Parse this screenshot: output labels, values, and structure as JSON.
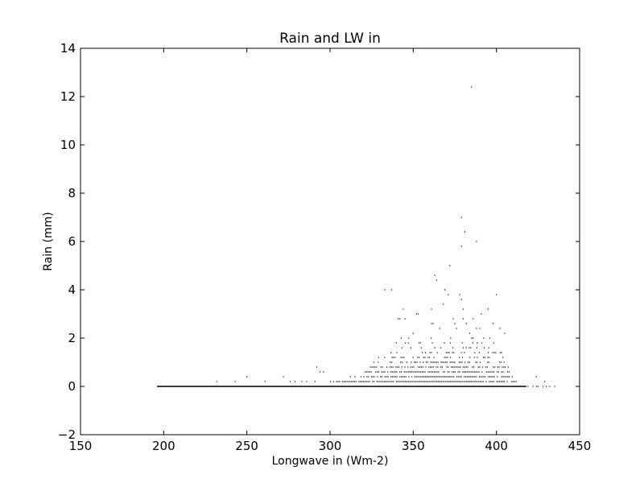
{
  "chart_data": {
    "type": "scatter",
    "title": "Rain and LW in",
    "xlabel": "Longwave in (Wm-2)",
    "ylabel": "Rain (mm)",
    "xlim": [
      150,
      450
    ],
    "ylim": [
      -2,
      14
    ],
    "xticks": [
      150,
      200,
      250,
      300,
      350,
      400,
      450
    ],
    "yticks": [
      -2,
      0,
      2,
      4,
      6,
      8,
      10,
      12,
      14
    ],
    "xtick_labels": [
      "150",
      "200",
      "250",
      "300",
      "350",
      "400",
      "450"
    ],
    "ytick_labels": [
      "−2",
      "0",
      "2",
      "4",
      "6",
      "8",
      "10",
      "12",
      "14"
    ],
    "grid": false,
    "marker_color": "#000000",
    "zero_band": {
      "x_from": 196,
      "x_to": 418,
      "y": 0
    },
    "sparse_points": {
      "x": [
        232,
        243,
        250,
        261,
        272,
        276,
        279,
        283,
        286,
        291,
        292,
        294,
        296,
        419,
        422,
        424,
        425,
        428,
        430,
        432,
        435,
        424,
        429
      ],
      "y": [
        0.2,
        0.2,
        0.4,
        0.2,
        0.4,
        0.2,
        0.2,
        0.2,
        0.2,
        0.2,
        0.8,
        0.6,
        0.6,
        0,
        0,
        0,
        0,
        0,
        0,
        0,
        0,
        0.4,
        0.2
      ]
    },
    "dense_bands": [
      {
        "y": 0.2,
        "x_from": 300,
        "x_to": 412
      },
      {
        "y": 0.4,
        "x_from": 312,
        "x_to": 410
      },
      {
        "y": 0.6,
        "x_from": 320,
        "x_to": 408
      },
      {
        "y": 0.8,
        "x_from": 324,
        "x_to": 407
      },
      {
        "y": 1.0,
        "x_from": 326,
        "x_to": 405
      },
      {
        "y": 1.2,
        "x_from": 328,
        "x_to": 404
      },
      {
        "y": 1.4,
        "x_from": 330,
        "x_to": 403
      },
      {
        "y": 1.6,
        "x_from": 333,
        "x_to": 401
      },
      {
        "y": 1.8,
        "x_from": 336,
        "x_to": 400
      },
      {
        "y": 2.0,
        "x_from": 338,
        "x_to": 398
      }
    ],
    "outliers": {
      "x": [
        385,
        379,
        381,
        388,
        379,
        372,
        363,
        364,
        337,
        369,
        371,
        378,
        379,
        400,
        344,
        352,
        353,
        342,
        368,
        374,
        391,
        395,
        386,
        376,
        361,
        362,
        375,
        380,
        382,
        388,
        390,
        398,
        402,
        345,
        361,
        341,
        333,
        350,
        366,
        384,
        405,
        380,
        396
      ],
      "y": [
        12.4,
        7.0,
        6.4,
        6.0,
        5.8,
        5.0,
        4.6,
        4.4,
        4.0,
        4.0,
        3.8,
        3.8,
        3.6,
        3.8,
        3.2,
        3.0,
        3.0,
        2.8,
        3.4,
        2.8,
        3.0,
        3.2,
        2.8,
        2.4,
        2.6,
        2.6,
        2.6,
        2.8,
        2.6,
        2.4,
        2.4,
        2.6,
        2.4,
        2.8,
        3.2,
        2.8,
        4.0,
        2.2,
        2.4,
        2.2,
        2.2,
        3.2,
        2.0
      ]
    }
  }
}
